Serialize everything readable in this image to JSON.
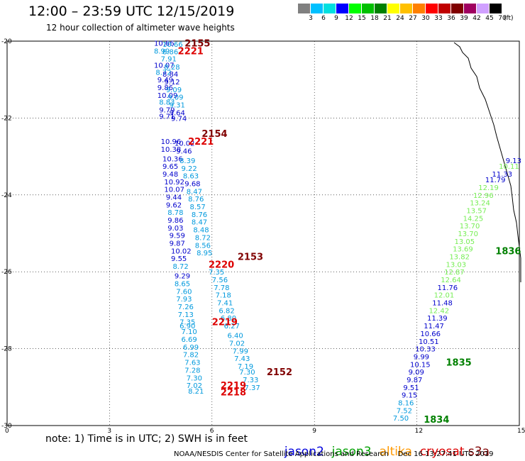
{
  "header": {
    "title": "12:00 – 23:59 UTC 12/15/2019",
    "subtitle": "12 hour collection of altimeter wave heights"
  },
  "scale": {
    "labels": [
      "3",
      "6",
      "9",
      "12",
      "15",
      "18",
      "21",
      "24",
      "27",
      "30",
      "33",
      "36",
      "39",
      "42",
      "45",
      "70"
    ],
    "unit": "(ft)",
    "colors": [
      "#808080",
      "#00c0ff",
      "#00e0e0",
      "#0000ff",
      "#00ff00",
      "#00c000",
      "#008000",
      "#ffff00",
      "#ffc000",
      "#ff8000",
      "#ff0000",
      "#c00000",
      "#800000",
      "#a00060",
      "#d0a0ff",
      "#000000"
    ]
  },
  "axes": {
    "y_ticks": [
      "20",
      "22",
      "24",
      "26",
      "28",
      "30"
    ],
    "x_ticks": [
      "0",
      "3",
      "6",
      "9",
      "12",
      "15"
    ],
    "lon_range": [
      0,
      15
    ],
    "lat_range": [
      20,
      30
    ]
  },
  "satellites": {
    "jason2": {
      "label": "jason2",
      "color": "#0000dd"
    },
    "jason3": {
      "label": "jason3",
      "color": "#00a000"
    },
    "altika": {
      "label": "altika",
      "color": "#ff9900"
    },
    "cryosat": {
      "label": "cryosat",
      "color": "#dd0000"
    },
    "s3a": {
      "label": "s3a",
      "color": "#800000"
    }
  },
  "footer": {
    "note": "note: 1) Time is in UTC; 2) SWH is in feet",
    "credit": "NOAA/NESDIS Center for Satellite Applications and Research    Dec 16 13:27:41 UTC 2019"
  },
  "tracks": [
    {
      "label": "2155",
      "color": "#800000",
      "lx": 5.2,
      "ly": 20.05,
      "points": []
    },
    {
      "label": "2221",
      "color": "#dd0000",
      "lx": 5.0,
      "ly": 20.25,
      "points": [
        [
          4.3,
          20.05,
          "10.66",
          "#0000cc"
        ],
        [
          4.55,
          20.07,
          "10.66",
          "#0099dd"
        ],
        [
          4.3,
          20.25,
          "8.99",
          "#0099dd"
        ],
        [
          4.55,
          20.27,
          "8.86",
          "#0099dd"
        ],
        [
          4.5,
          20.45,
          "7.91",
          "#0099dd"
        ],
        [
          4.3,
          20.62,
          "10.07",
          "#0000cc"
        ],
        [
          4.6,
          20.66,
          "8.28",
          "#0099dd"
        ],
        [
          4.35,
          20.8,
          "8.72",
          "#0099dd"
        ],
        [
          4.55,
          20.85,
          "8.84",
          "#0000cc"
        ],
        [
          4.4,
          21.0,
          "9.49",
          "#0000cc"
        ],
        [
          4.6,
          21.05,
          "9.12",
          "#0000cc"
        ],
        [
          4.4,
          21.2,
          "9.86",
          "#0000cc"
        ],
        [
          4.65,
          21.25,
          "9.09",
          "#0099dd"
        ],
        [
          4.4,
          21.4,
          "10.09",
          "#0000cc"
        ],
        [
          4.7,
          21.45,
          "9.09",
          "#0099dd"
        ],
        [
          4.45,
          21.58,
          "8.83",
          "#0099dd"
        ],
        [
          4.75,
          21.65,
          "9.31",
          "#0099dd"
        ],
        [
          4.45,
          21.78,
          "9.79",
          "#0000cc"
        ],
        [
          4.75,
          21.85,
          "9.64",
          "#0000cc"
        ],
        [
          4.45,
          21.95,
          "9.71",
          "#0000cc"
        ],
        [
          4.8,
          22.0,
          "9.74",
          "#0000cc"
        ]
      ]
    },
    {
      "label": "2154",
      "color": "#800000",
      "lx": 5.7,
      "ly": 22.4,
      "points": []
    },
    {
      "label": "2221",
      "color": "#dd0000",
      "lx": 5.3,
      "ly": 22.6,
      "points": [
        [
          4.5,
          22.6,
          "10.96",
          "#0000cc"
        ],
        [
          4.9,
          22.65,
          "10.02",
          "#0000cc"
        ],
        [
          4.5,
          22.8,
          "10.38",
          "#0000cc"
        ],
        [
          4.95,
          22.85,
          "9.46",
          "#0000cc"
        ],
        [
          4.55,
          23.05,
          "10.36",
          "#0000cc"
        ],
        [
          5.05,
          23.1,
          "8.39",
          "#0099dd"
        ],
        [
          4.55,
          23.25,
          "9.65",
          "#0000cc"
        ],
        [
          5.1,
          23.3,
          "9.22",
          "#0099dd"
        ],
        [
          4.55,
          23.45,
          "9.48",
          "#0000cc"
        ],
        [
          5.15,
          23.5,
          "8.63",
          "#0099dd"
        ],
        [
          4.6,
          23.65,
          "10.92",
          "#0000cc"
        ],
        [
          5.2,
          23.7,
          "9.68",
          "#0000cc"
        ],
        [
          4.6,
          23.85,
          "10.07",
          "#0000cc"
        ],
        [
          5.25,
          23.9,
          "8.47",
          "#0099dd"
        ],
        [
          4.65,
          24.05,
          "9.44",
          "#0000cc"
        ],
        [
          5.3,
          24.1,
          "8.76",
          "#0099dd"
        ],
        [
          4.65,
          24.25,
          "9.62",
          "#0000cc"
        ],
        [
          5.35,
          24.3,
          "8.57",
          "#0099dd"
        ],
        [
          4.7,
          24.45,
          "8.78",
          "#0099dd"
        ],
        [
          5.4,
          24.5,
          "8.76",
          "#0099dd"
        ],
        [
          4.7,
          24.65,
          "9.86",
          "#0000cc"
        ],
        [
          5.4,
          24.7,
          "8.47",
          "#0099dd"
        ],
        [
          4.7,
          24.85,
          "9.03",
          "#0000cc"
        ],
        [
          5.45,
          24.9,
          "8.48",
          "#0099dd"
        ],
        [
          4.75,
          25.05,
          "9.59",
          "#0000cc"
        ],
        [
          5.5,
          25.1,
          "8.72",
          "#0099dd"
        ],
        [
          4.75,
          25.25,
          "9.87",
          "#0000cc"
        ],
        [
          5.5,
          25.3,
          "8.56",
          "#0099dd"
        ],
        [
          4.8,
          25.45,
          "10.02",
          "#0000cc"
        ],
        [
          5.55,
          25.5,
          "8.95",
          "#0099dd"
        ],
        [
          4.8,
          25.65,
          "9.55",
          "#0000cc"
        ]
      ]
    },
    {
      "label": "2153",
      "color": "#800000",
      "lx": 6.75,
      "ly": 25.6,
      "points": []
    },
    {
      "label": "2220",
      "color": "#dd0000",
      "lx": 5.9,
      "ly": 25.8,
      "points": [
        [
          4.85,
          25.85,
          "8.72",
          "#0099dd"
        ],
        [
          5.9,
          26.0,
          "7.35",
          "#0099dd"
        ],
        [
          4.9,
          26.1,
          "9.29",
          "#0000cc"
        ],
        [
          6.0,
          26.2,
          "7.56",
          "#0099dd"
        ],
        [
          4.9,
          26.3,
          "8.65",
          "#0099dd"
        ],
        [
          6.05,
          26.4,
          "7.78",
          "#0099dd"
        ],
        [
          4.95,
          26.5,
          "7.60",
          "#0099dd"
        ],
        [
          6.1,
          26.6,
          "7.18",
          "#0099dd"
        ],
        [
          4.95,
          26.7,
          "7.93",
          "#0099dd"
        ],
        [
          6.15,
          26.8,
          "7.41",
          "#0099dd"
        ],
        [
          5.0,
          26.9,
          "7.26",
          "#0099dd"
        ],
        [
          6.2,
          27.0,
          "6.82",
          "#0099dd"
        ],
        [
          5.0,
          27.1,
          "7.13",
          "#0099dd"
        ],
        [
          6.25,
          27.2,
          "6.80",
          "#0099dd"
        ],
        [
          5.05,
          27.3,
          "7.35",
          "#0099dd"
        ]
      ]
    },
    {
      "label": "2219",
      "color": "#dd0000",
      "lx": 6.0,
      "ly": 27.3,
      "points": [
        [
          5.05,
          27.4,
          "6.90",
          "#0099dd"
        ],
        [
          6.35,
          27.4,
          "6.27",
          "#0099dd"
        ],
        [
          5.1,
          27.55,
          "7.10",
          "#0099dd"
        ],
        [
          6.45,
          27.65,
          "6.40",
          "#0099dd"
        ],
        [
          5.1,
          27.75,
          "6.69",
          "#0099dd"
        ],
        [
          6.5,
          27.85,
          "7.02",
          "#0099dd"
        ],
        [
          5.15,
          27.95,
          "6.99",
          "#0099dd"
        ],
        [
          6.6,
          28.05,
          "7.99",
          "#0099dd"
        ],
        [
          5.15,
          28.15,
          "7.82",
          "#0099dd"
        ],
        [
          6.65,
          28.25,
          "7.43",
          "#0099dd"
        ],
        [
          5.2,
          28.35,
          "7.63",
          "#0099dd"
        ],
        [
          6.75,
          28.45,
          "7.19",
          "#0099dd"
        ],
        [
          5.2,
          28.55,
          "7.28",
          "#0099dd"
        ],
        [
          6.8,
          28.6,
          "7.30",
          "#0099dd"
        ],
        [
          5.25,
          28.75,
          "7.30",
          "#0099dd"
        ],
        [
          6.9,
          28.8,
          "7.33",
          "#0099dd"
        ],
        [
          5.25,
          28.95,
          "7.02",
          "#0099dd"
        ],
        [
          6.95,
          29.0,
          "7.37",
          "#0099dd"
        ],
        [
          5.3,
          29.1,
          "8.21",
          "#0099dd"
        ]
      ]
    },
    {
      "label": "2152",
      "color": "#800000",
      "lx": 7.6,
      "ly": 28.6,
      "points": []
    },
    {
      "label": "2219",
      "color": "#dd0000",
      "lx": 6.25,
      "ly": 28.95,
      "points": []
    },
    {
      "label": "2218",
      "color": "#dd0000",
      "lx": 6.25,
      "ly": 29.12,
      "points": []
    },
    {
      "label": "1836",
      "color": "#008000",
      "lx": 14.3,
      "ly": 25.45,
      "points": [
        [
          14.6,
          23.1,
          "9.13",
          "#0000cc"
        ],
        [
          14.4,
          23.25,
          "10.11",
          "#77ee55"
        ],
        [
          14.2,
          23.45,
          "11.33",
          "#0000cc"
        ],
        [
          14.0,
          23.6,
          "11.79",
          "#0000cc"
        ],
        [
          13.8,
          23.8,
          "12.19",
          "#77ee55"
        ],
        [
          13.65,
          24.0,
          "12.96",
          "#77ee55"
        ],
        [
          13.55,
          24.2,
          "13.24",
          "#77ee55"
        ],
        [
          13.45,
          24.4,
          "13.57",
          "#77ee55"
        ],
        [
          13.35,
          24.6,
          "14.25",
          "#77ee55"
        ],
        [
          13.25,
          24.8,
          "13.70",
          "#77ee55"
        ],
        [
          13.2,
          25.0,
          "13.70",
          "#77ee55"
        ],
        [
          13.1,
          25.2,
          "13.05",
          "#77ee55"
        ],
        [
          13.05,
          25.4,
          "13.69",
          "#77ee55"
        ],
        [
          12.95,
          25.6,
          "13.82",
          "#77ee55"
        ],
        [
          12.85,
          25.8,
          "13.03",
          "#77ee55"
        ],
        [
          12.8,
          26.0,
          "12.87",
          "#77ee55"
        ],
        [
          12.7,
          26.2,
          "12.64",
          "#77ee55"
        ],
        [
          12.6,
          26.4,
          "11.76",
          "#0000cc"
        ],
        [
          12.5,
          26.6,
          "12.01",
          "#77ee55"
        ],
        [
          12.45,
          26.8,
          "11.48",
          "#0000cc"
        ],
        [
          12.35,
          27.0,
          "12.42",
          "#77ee55"
        ],
        [
          12.3,
          27.2,
          "11.39",
          "#0000cc"
        ],
        [
          12.2,
          27.4,
          "11.47",
          "#0000cc"
        ],
        [
          12.1,
          27.6,
          "10.66",
          "#0000cc"
        ],
        [
          12.05,
          27.8,
          "10.51",
          "#0000cc"
        ]
      ]
    },
    {
      "label": "1835",
      "color": "#008000",
      "lx": 12.85,
      "ly": 28.35,
      "points": [
        [
          11.95,
          28.0,
          "10.33",
          "#0000cc"
        ],
        [
          11.9,
          28.2,
          "9.99",
          "#0000cc"
        ],
        [
          11.8,
          28.4,
          "10.15",
          "#0000cc"
        ],
        [
          11.75,
          28.6,
          "9.09",
          "#0000cc"
        ],
        [
          11.7,
          28.8,
          "9.87",
          "#0000cc"
        ],
        [
          11.6,
          29.0,
          "9.51",
          "#0000cc"
        ],
        [
          11.55,
          29.2,
          "9.15",
          "#0000cc"
        ],
        [
          11.45,
          29.4,
          "8.16",
          "#0099dd"
        ],
        [
          11.4,
          29.6,
          "7.52",
          "#0099dd"
        ],
        [
          11.3,
          29.8,
          "7.50",
          "#0099dd"
        ]
      ]
    },
    {
      "label": "1834",
      "color": "#008000",
      "lx": 12.2,
      "ly": 29.83,
      "points": []
    }
  ]
}
